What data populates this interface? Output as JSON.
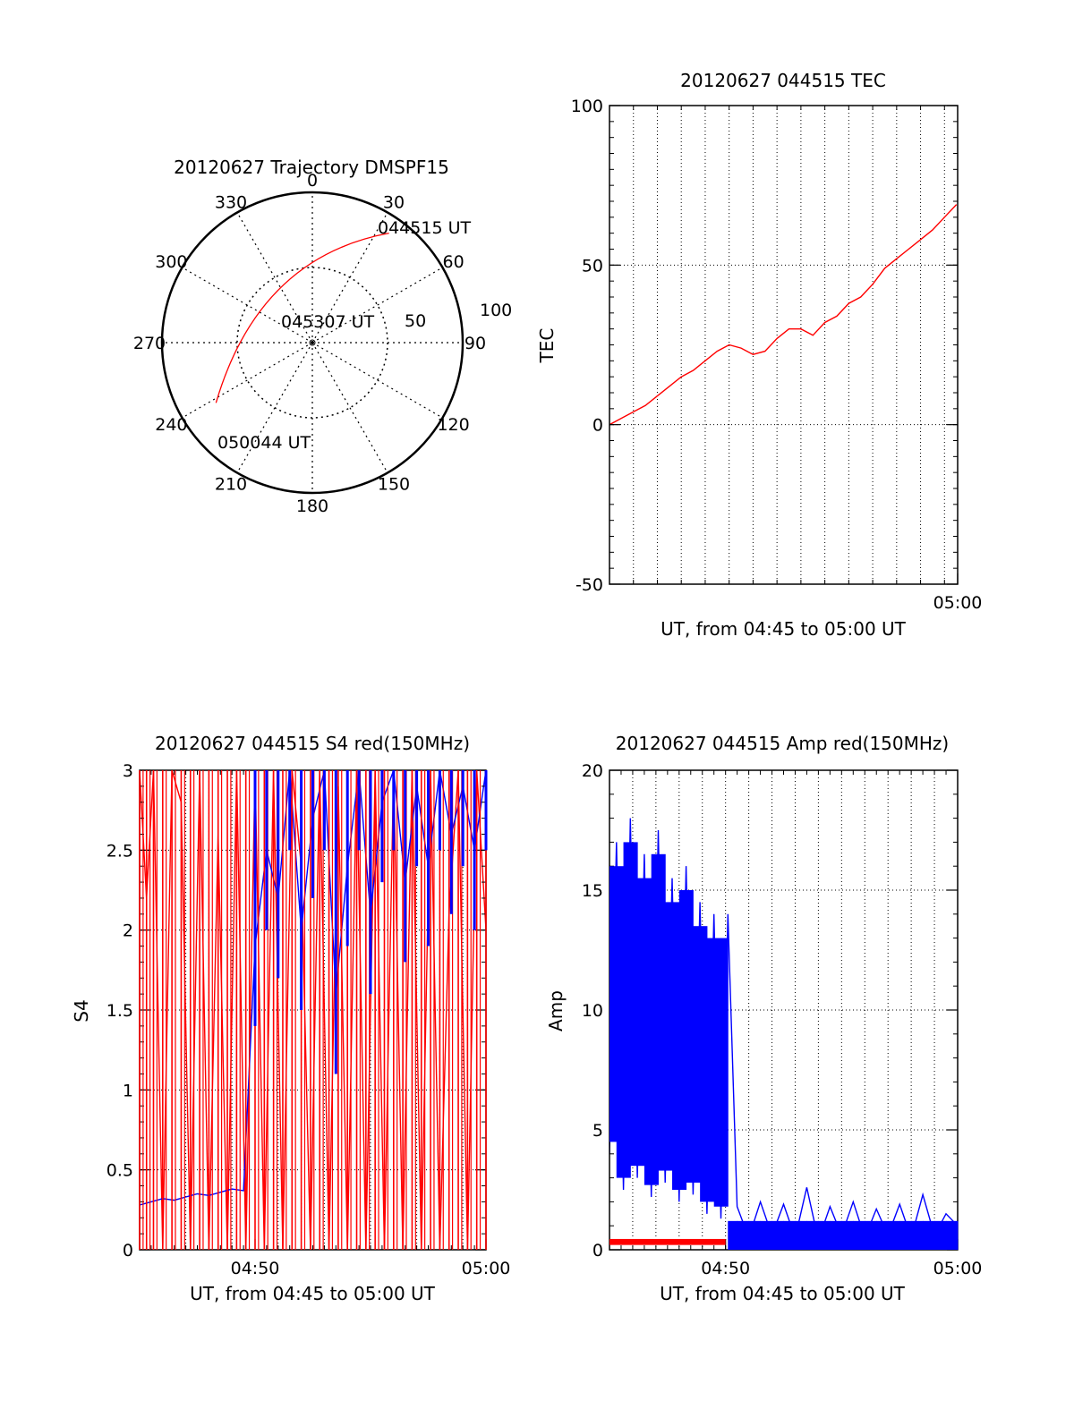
{
  "colors": {
    "red_series": "#ff0000",
    "blue_series": "#0000ff",
    "axes": "#000000",
    "grid": "#000000",
    "background": "#ffffff"
  },
  "chart_data": [
    {
      "id": "trajectory",
      "type": "scatter",
      "projection": "polar",
      "title": "20120627 Trajectory DMSPF15",
      "angular_ticks": [
        "0",
        "30",
        "60",
        "90",
        "120",
        "150",
        "180",
        "210",
        "240",
        "270",
        "300",
        "330"
      ],
      "radial_ticks": [
        "50",
        "100"
      ],
      "radial_range": [
        0,
        100
      ],
      "grid": true,
      "series": [
        {
          "color": "#ff0000",
          "points": [
            {
              "azimuth": 35,
              "elevation": 10
            },
            {
              "azimuth": 330,
              "elevation": 52
            },
            {
              "azimuth": 238,
              "elevation": 22
            }
          ]
        }
      ],
      "annotations": [
        {
          "text": "044515 UT",
          "azimuth": 38,
          "elevation": 14
        },
        {
          "text": "045307 UT",
          "azimuth": 10,
          "elevation": 75
        },
        {
          "text": "050044 UT",
          "azimuth": 226,
          "elevation": 28
        }
      ]
    },
    {
      "id": "tec",
      "type": "line",
      "title": "20120627 044515 TEC",
      "xlabel": "UT, from 04:45 to 05:00 UT",
      "ylabel": "TEC",
      "x_unit": "minutes after 04:45",
      "xlim": [
        0,
        14.55
      ],
      "ylim": [
        -50,
        100
      ],
      "yticks": [
        "100",
        "50",
        "0",
        "-50"
      ],
      "xticks": [
        {
          "label": "05:00",
          "value": 15
        }
      ],
      "grid": true,
      "series": [
        {
          "color": "#ff0000",
          "x": [
            0,
            0.5,
            1,
            1.5,
            2,
            2.5,
            3,
            3.5,
            4,
            4.5,
            5,
            5.5,
            6,
            6.5,
            7,
            7.5,
            8,
            8.5,
            9,
            9.5,
            10,
            10.5,
            11,
            11.5,
            12,
            12.5,
            13,
            13.5,
            14,
            14.5
          ],
          "y": [
            0,
            2,
            4,
            6,
            9,
            12,
            15,
            17,
            20,
            23,
            25,
            24,
            22,
            23,
            27,
            30,
            30,
            28,
            32,
            34,
            38,
            40,
            44,
            49,
            52,
            55,
            58,
            61,
            65,
            69
          ]
        }
      ]
    },
    {
      "id": "s4",
      "type": "line",
      "title": "20120627 044515 S4 red(150MHz)",
      "xlabel": "UT, from 04:45 to 05:00 UT",
      "ylabel": "S4",
      "x_unit": "minutes after 04:45",
      "xlim": [
        0,
        15
      ],
      "ylim": [
        0,
        3
      ],
      "yticks": [
        "3",
        "2.5",
        "2",
        "1.5",
        "1",
        "0.5",
        "0"
      ],
      "xticks": [
        {
          "label": "04:50",
          "value": 5
        },
        {
          "label": "05:00",
          "value": 15
        }
      ],
      "grid": true,
      "series": [
        {
          "color": "#ff0000",
          "x": [
            0,
            0.3,
            0.6,
            1,
            1.4,
            1.8,
            2.2,
            2.6,
            3,
            3.4,
            3.8,
            4.2,
            4.6,
            5,
            5.4,
            5.8,
            6.2,
            6.6,
            7,
            7.4,
            7.8,
            8.2,
            8.6,
            9,
            9.4,
            9.8,
            10.2,
            10.6,
            11,
            11.4,
            11.8,
            12.2,
            12.6,
            13,
            13.4,
            13.8,
            14.2,
            14.6,
            15
          ],
          "y": [
            3,
            2.2,
            3,
            0,
            3,
            2.8,
            0,
            3,
            0,
            2.6,
            0,
            3,
            0,
            3,
            0,
            3,
            0,
            3,
            2.4,
            0,
            3,
            0,
            2.9,
            0,
            3,
            0,
            3,
            0,
            3,
            0,
            3,
            0,
            3,
            0,
            2.1,
            3,
            0,
            3,
            2.0
          ]
        },
        {
          "color": "#0000ff",
          "x": [
            0,
            0.5,
            1,
            1.5,
            2,
            2.5,
            3,
            3.5,
            4,
            4.5,
            5,
            5.5,
            6,
            6.5,
            7,
            7.5,
            8,
            8.5,
            9,
            9.5,
            10,
            10.5,
            11,
            11.5,
            12,
            12.5,
            13,
            13.5,
            14,
            14.5,
            15
          ],
          "y": [
            0.28,
            0.3,
            0.32,
            0.31,
            0.33,
            0.35,
            0.34,
            0.36,
            0.38,
            0.37,
            1.9,
            2.5,
            2.2,
            3,
            2.0,
            2.7,
            3,
            1.6,
            2.4,
            3,
            2.1,
            2.8,
            3,
            2.3,
            2.9,
            2.4,
            3,
            2.6,
            2.9,
            2.5,
            3
          ]
        }
      ]
    },
    {
      "id": "amp",
      "type": "line",
      "title": "20120627 044515 Amp red(150MHz)",
      "xlabel": "UT, from 04:45 to 05:00 UT",
      "ylabel": "Amp",
      "x_unit": "minutes after 04:45",
      "xlim": [
        0,
        15
      ],
      "ylim": [
        0,
        20
      ],
      "yticks": [
        "20",
        "15",
        "10",
        "5",
        "0"
      ],
      "xticks": [
        {
          "label": "04:50",
          "value": 5
        },
        {
          "label": "05:00",
          "value": 15
        }
      ],
      "grid": true,
      "series": [
        {
          "color": "#0000ff",
          "x": [
            0,
            0.3,
            0.6,
            0.9,
            1.2,
            1.5,
            1.8,
            2.1,
            2.4,
            2.7,
            3.0,
            3.3,
            3.6,
            3.9,
            4.2,
            4.5,
            4.8,
            5.1,
            5.5,
            6,
            6.5,
            7,
            7.5,
            8,
            8.5,
            9,
            9.5,
            10,
            10.5,
            11,
            11.5,
            12,
            12.5,
            13,
            13.5,
            14,
            14.5,
            15
          ],
          "y": [
            4,
            17,
            2.5,
            18,
            3,
            16.5,
            2.2,
            17.5,
            2.8,
            15.5,
            2.0,
            16,
            2.3,
            14.5,
            1.5,
            14,
            1.3,
            14,
            1.8,
            0.5,
            2.0,
            0.6,
            1.9,
            0.5,
            2.6,
            0.4,
            1.8,
            0.6,
            2.0,
            0.5,
            1.7,
            0.6,
            1.9,
            0.5,
            2.3,
            0.6,
            1.5,
            1.0
          ]
        },
        {
          "color": "#ff0000",
          "x": [
            0,
            0.5,
            1,
            1.5,
            2,
            2.5,
            3,
            3.5,
            4,
            4.5,
            5
          ],
          "y": [
            0.3,
            0.4,
            0.3,
            0.35,
            0.4,
            0.3,
            0.35,
            0.4,
            0.3,
            0.35,
            0.3
          ]
        }
      ]
    }
  ]
}
